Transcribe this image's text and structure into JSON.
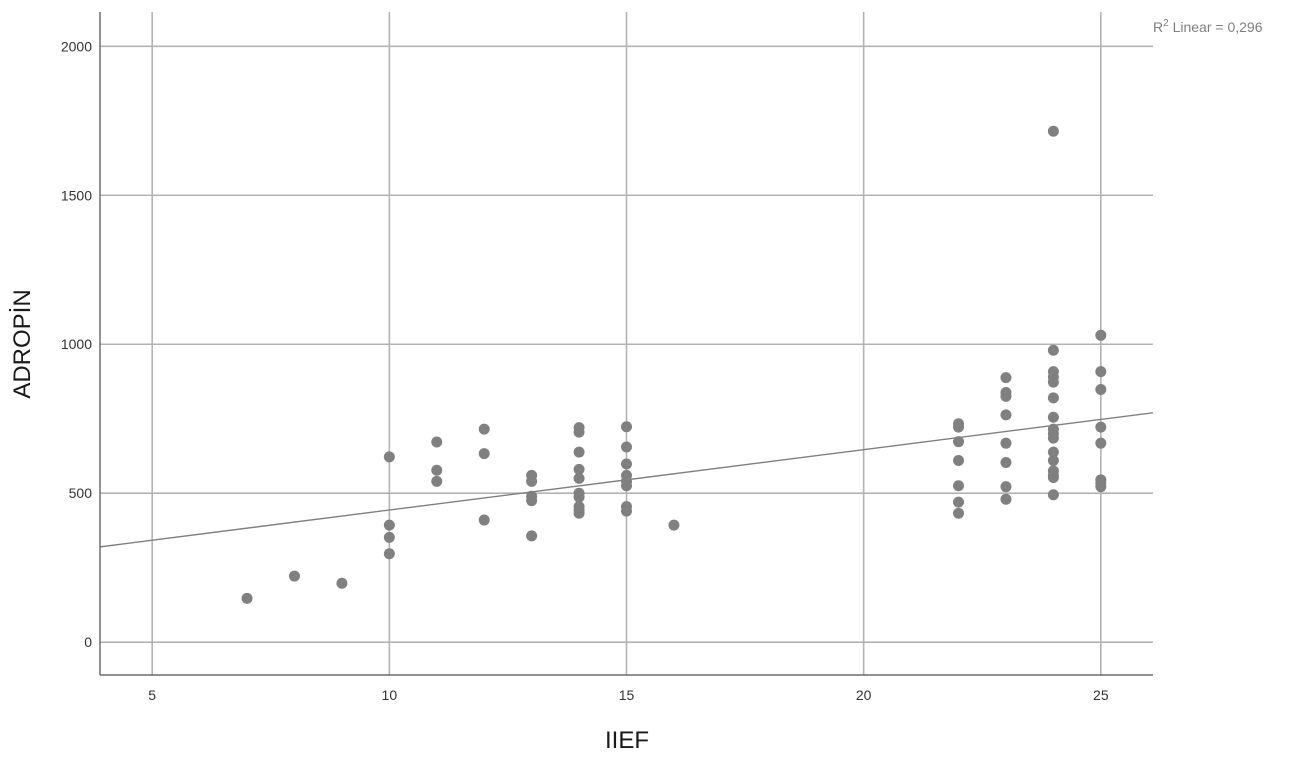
{
  "chart_data": {
    "type": "scatter",
    "xlabel": "IIEF",
    "ylabel": "ADROPİN",
    "xlim": [
      3.9,
      26.1
    ],
    "ylim": [
      -110,
      2115
    ],
    "x_ticks": [
      5,
      10,
      15,
      20,
      25
    ],
    "y_ticks": [
      0,
      500,
      1000,
      1500,
      2000
    ],
    "x_tick_labels": [
      "5",
      "10",
      "15",
      "20",
      "25"
    ],
    "y_tick_labels": [
      "0",
      "500",
      "1000",
      "1500",
      "2000"
    ],
    "grid": true,
    "colors": {
      "points": "#808080",
      "grid": "#b3b3b3",
      "fit_line": "#808080",
      "axes": "#4d4d4d"
    },
    "fit_line": {
      "type": "linear",
      "label_prefix": "R",
      "label_sup": "2",
      "label_suffix": " Linear = 0,296",
      "points": [
        [
          3.9,
          320
        ],
        [
          26.1,
          770
        ]
      ]
    },
    "points": [
      [
        7,
        147
      ],
      [
        8,
        222
      ],
      [
        9,
        198
      ],
      [
        10,
        622
      ],
      [
        10,
        393
      ],
      [
        10,
        352
      ],
      [
        10,
        297
      ],
      [
        11,
        672
      ],
      [
        11,
        577
      ],
      [
        11,
        540
      ],
      [
        12,
        715
      ],
      [
        12,
        633
      ],
      [
        12,
        410
      ],
      [
        13,
        560
      ],
      [
        13,
        540
      ],
      [
        13,
        490
      ],
      [
        13,
        475
      ],
      [
        13,
        357
      ],
      [
        14,
        720
      ],
      [
        14,
        705
      ],
      [
        14,
        638
      ],
      [
        14,
        580
      ],
      [
        14,
        550
      ],
      [
        14,
        500
      ],
      [
        14,
        487
      ],
      [
        14,
        455
      ],
      [
        14,
        443
      ],
      [
        14,
        433
      ],
      [
        15,
        723
      ],
      [
        15,
        655
      ],
      [
        15,
        598
      ],
      [
        15,
        560
      ],
      [
        15,
        540
      ],
      [
        15,
        525
      ],
      [
        15,
        455
      ],
      [
        15,
        440
      ],
      [
        16,
        393
      ],
      [
        22,
        733
      ],
      [
        22,
        722
      ],
      [
        22,
        673
      ],
      [
        22,
        610
      ],
      [
        22,
        525
      ],
      [
        22,
        470
      ],
      [
        22,
        433
      ],
      [
        23,
        888
      ],
      [
        23,
        838
      ],
      [
        23,
        825
      ],
      [
        23,
        763
      ],
      [
        23,
        668
      ],
      [
        23,
        603
      ],
      [
        23,
        522
      ],
      [
        23,
        480
      ],
      [
        24,
        1715
      ],
      [
        24,
        980
      ],
      [
        24,
        908
      ],
      [
        24,
        890
      ],
      [
        24,
        873
      ],
      [
        24,
        820
      ],
      [
        24,
        755
      ],
      [
        24,
        715
      ],
      [
        24,
        700
      ],
      [
        24,
        685
      ],
      [
        24,
        638
      ],
      [
        24,
        610
      ],
      [
        24,
        575
      ],
      [
        24,
        560
      ],
      [
        24,
        553
      ],
      [
        24,
        495
      ],
      [
        25,
        1030
      ],
      [
        25,
        908
      ],
      [
        25,
        848
      ],
      [
        25,
        722
      ],
      [
        25,
        668
      ],
      [
        25,
        545
      ],
      [
        25,
        535
      ],
      [
        25,
        522
      ]
    ]
  }
}
